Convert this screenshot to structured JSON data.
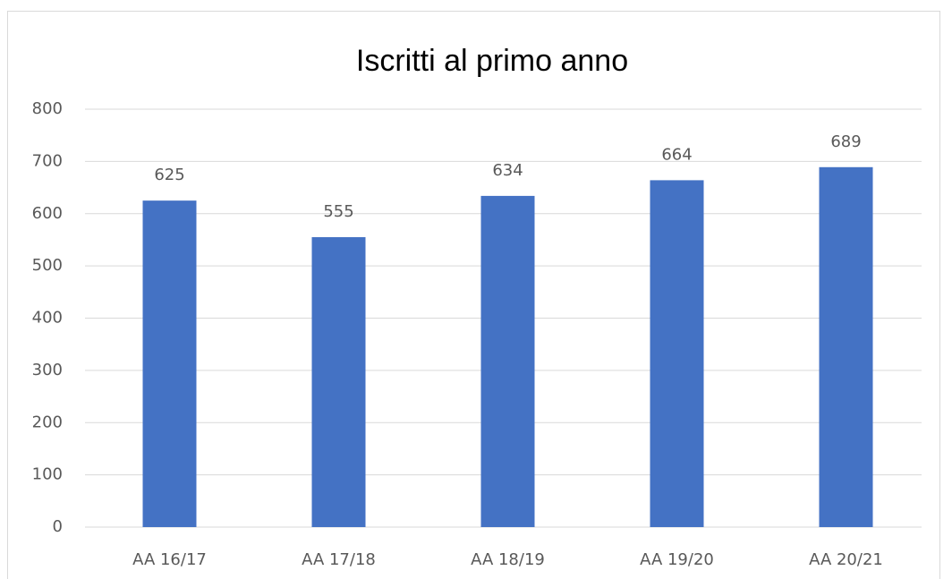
{
  "chart_data": {
    "type": "bar",
    "title": "Iscritti al primo anno",
    "categories": [
      "AA 16/17",
      "AA 17/18",
      "AA 18/19",
      "AA 19/20",
      "AA 20/21"
    ],
    "values": [
      625,
      555,
      634,
      664,
      689
    ],
    "color": "#4472c4",
    "ylim": [
      0,
      800
    ],
    "yticks": [
      0,
      100,
      200,
      300,
      400,
      500,
      600,
      700,
      800
    ],
    "grid": true
  }
}
